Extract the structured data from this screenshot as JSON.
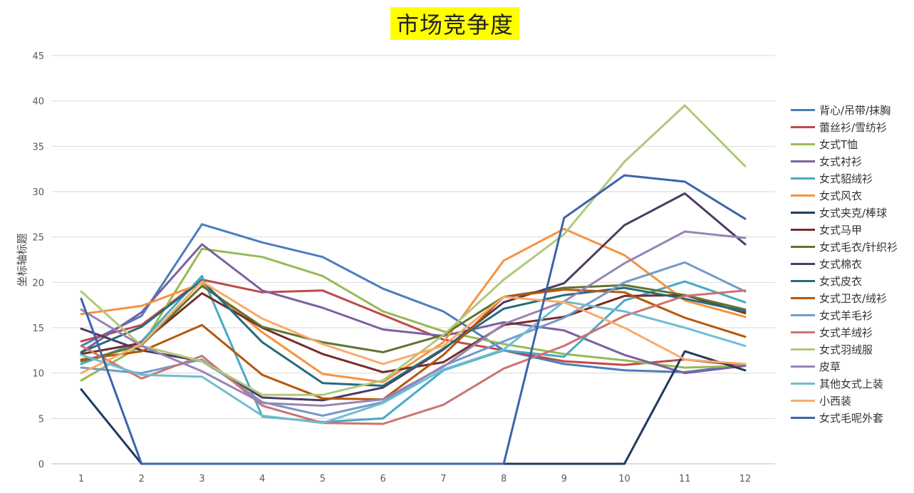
{
  "chart_data": {
    "type": "line",
    "title": "市场竞争度",
    "xlabel": "",
    "ylabel": "坐标轴标题",
    "ylim": [
      0,
      45
    ],
    "yticks": [
      0,
      5,
      10,
      15,
      20,
      25,
      30,
      35,
      40,
      45
    ],
    "grid": true,
    "legend": "right",
    "categories": [
      "1",
      "2",
      "3",
      "4",
      "5",
      "6",
      "7",
      "8",
      "9",
      "10",
      "11",
      "12"
    ],
    "series": [
      {
        "name": "背心/吊带/抹胸",
        "color": "#4a7ebb",
        "values": [
          13.0,
          16.3,
          26.4,
          24.4,
          22.8,
          19.3,
          16.8,
          12.5,
          11.0,
          10.3,
          10.1,
          10.9
        ]
      },
      {
        "name": "蕾丝衫/雪纺衫",
        "color": "#be4b48",
        "values": [
          13.5,
          15.3,
          20.3,
          18.9,
          19.1,
          16.4,
          13.7,
          12.5,
          11.3,
          10.9,
          11.5,
          10.8
        ]
      },
      {
        "name": "女式T恤",
        "color": "#98b954",
        "values": [
          9.2,
          13.0,
          23.7,
          22.8,
          20.7,
          16.8,
          14.6,
          13.2,
          12.1,
          11.4,
          10.6,
          10.8
        ]
      },
      {
        "name": "女式衬衫",
        "color": "#7d60a0",
        "values": [
          12.3,
          16.7,
          24.2,
          19.1,
          17.2,
          14.8,
          14.1,
          15.6,
          14.7,
          12.0,
          10.0,
          10.8
        ]
      },
      {
        "name": "女式貂绒衫",
        "color": "#46aac5",
        "values": [
          11.0,
          13.5,
          20.7,
          5.2,
          4.6,
          5.0,
          10.3,
          12.5,
          11.8,
          18.0,
          20.1,
          17.8
        ]
      },
      {
        "name": "女式风衣",
        "color": "#f69240",
        "values": [
          16.5,
          17.4,
          19.9,
          14.5,
          9.9,
          9.0,
          13.4,
          22.4,
          25.9,
          23.0,
          18.0,
          16.2
        ]
      },
      {
        "name": "女式夹克/棒球",
        "color": "#1f3b5c",
        "values": [
          8.2,
          0,
          0,
          0,
          0,
          0,
          0,
          0,
          0,
          0,
          12.4,
          10.3
        ]
      },
      {
        "name": "女式马甲",
        "color": "#772c2a",
        "values": [
          12.1,
          13.3,
          18.8,
          15.0,
          12.1,
          10.1,
          11.2,
          15.3,
          16.2,
          18.5,
          18.6,
          16.6
        ]
      },
      {
        "name": "女式毛衣/针织衫",
        "color": "#5f7530",
        "values": [
          11.3,
          13.1,
          19.6,
          15.1,
          13.4,
          12.3,
          14.2,
          18.4,
          19.4,
          19.7,
          18.6,
          17.0
        ]
      },
      {
        "name": "女式棉衣",
        "color": "#4d3b62",
        "values": [
          14.9,
          12.5,
          11.3,
          7.3,
          7.0,
          8.4,
          12.6,
          17.8,
          19.9,
          26.3,
          29.8,
          24.2
        ]
      },
      {
        "name": "女式皮衣",
        "color": "#276a7c",
        "values": [
          12.3,
          15.1,
          20.2,
          13.4,
          8.9,
          8.6,
          12.7,
          17.1,
          18.6,
          19.4,
          18.2,
          16.8
        ]
      },
      {
        "name": "女式卫衣/绒衫",
        "color": "#b65708",
        "values": [
          11.5,
          12.4,
          15.3,
          9.8,
          7.2,
          7.1,
          12.0,
          18.4,
          19.2,
          18.9,
          16.1,
          14.0
        ]
      },
      {
        "name": "女式羊毛衫",
        "color": "#729aca",
        "values": [
          10.6,
          10.0,
          11.5,
          6.8,
          5.3,
          6.8,
          10.8,
          13.5,
          16.1,
          20.0,
          22.2,
          19.0
        ]
      },
      {
        "name": "女式羊绒衫",
        "color": "#cd7371",
        "values": [
          13.0,
          9.4,
          11.9,
          6.4,
          4.5,
          4.4,
          6.5,
          10.5,
          13.0,
          16.3,
          18.5,
          19.1
        ]
      },
      {
        "name": "女式羽绒服",
        "color": "#afc97a",
        "values": [
          19.0,
          13.0,
          11.3,
          7.6,
          7.6,
          9.2,
          14.2,
          20.3,
          25.3,
          33.3,
          39.5,
          32.8
        ]
      },
      {
        "name": "皮草",
        "color": "#9983b5",
        "values": [
          17.0,
          13.0,
          10.2,
          6.7,
          6.4,
          7.1,
          10.7,
          15.4,
          17.9,
          22.1,
          25.6,
          24.9
        ]
      },
      {
        "name": "其他女式上装",
        "color": "#6fbdd1",
        "values": [
          12.0,
          9.8,
          9.6,
          5.3,
          4.5,
          6.7,
          10.4,
          12.6,
          17.9,
          16.8,
          15.0,
          13.0
        ]
      },
      {
        "name": "小西装",
        "color": "#f9ab6b",
        "values": [
          10.0,
          13.2,
          20.1,
          16.0,
          13.2,
          11.0,
          13.0,
          18.4,
          17.8,
          15.0,
          11.5,
          11.0
        ]
      },
      {
        "name": "女式毛呢外套",
        "color": "#3b64ad",
        "values": [
          18.2,
          0,
          0,
          0,
          0,
          0,
          0,
          0,
          27.1,
          31.8,
          31.1,
          27.0
        ]
      }
    ]
  }
}
